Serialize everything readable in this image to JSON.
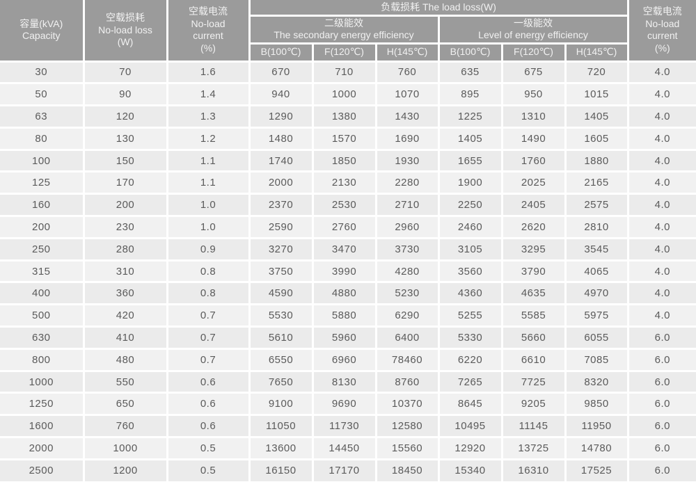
{
  "table": {
    "header": {
      "capacity": [
        "容量(kVA)",
        "Capacity"
      ],
      "no_load_loss": [
        "空载损耗",
        "No-load loss",
        "(W)"
      ],
      "no_load_current_left": [
        "空载电流",
        "No-load",
        "current",
        "(%)"
      ],
      "load_loss_group": "负载损耗 The load loss(W)",
      "secondary_efficiency": [
        "二级能效",
        "The secondary energy efficiency"
      ],
      "first_level_efficiency": [
        "一级能效",
        "Level of energy efficiency"
      ],
      "temp_columns": [
        "B(100℃)",
        "F(120℃)",
        "H(145℃)",
        "B(100℃)",
        "F(120℃)",
        "H(145℃)"
      ],
      "no_load_current_right": [
        "空载电流",
        "No-load",
        "current",
        "(%)"
      ]
    },
    "rows": [
      [
        "30",
        "70",
        "1.6",
        "670",
        "710",
        "760",
        "635",
        "675",
        "720",
        "4.0"
      ],
      [
        "50",
        "90",
        "1.4",
        "940",
        "1000",
        "1070",
        "895",
        "950",
        "1015",
        "4.0"
      ],
      [
        "63",
        "120",
        "1.3",
        "1290",
        "1380",
        "1430",
        "1225",
        "1310",
        "1405",
        "4.0"
      ],
      [
        "80",
        "130",
        "1.2",
        "1480",
        "1570",
        "1690",
        "1405",
        "1490",
        "1605",
        "4.0"
      ],
      [
        "100",
        "150",
        "1.1",
        "1740",
        "1850",
        "1930",
        "1655",
        "1760",
        "1880",
        "4.0"
      ],
      [
        "125",
        "170",
        "1.1",
        "2000",
        "2130",
        "2280",
        "1900",
        "2025",
        "2165",
        "4.0"
      ],
      [
        "160",
        "200",
        "1.0",
        "2370",
        "2530",
        "2710",
        "2250",
        "2405",
        "2575",
        "4.0"
      ],
      [
        "200",
        "230",
        "1.0",
        "2590",
        "2760",
        "2960",
        "2460",
        "2620",
        "2810",
        "4.0"
      ],
      [
        "250",
        "280",
        "0.9",
        "3270",
        "3470",
        "3730",
        "3105",
        "3295",
        "3545",
        "4.0"
      ],
      [
        "315",
        "310",
        "0.8",
        "3750",
        "3990",
        "4280",
        "3560",
        "3790",
        "4065",
        "4.0"
      ],
      [
        "400",
        "360",
        "0.8",
        "4590",
        "4880",
        "5230",
        "4360",
        "4635",
        "4970",
        "4.0"
      ],
      [
        "500",
        "420",
        "0.7",
        "5530",
        "5880",
        "6290",
        "5255",
        "5585",
        "5975",
        "4.0"
      ],
      [
        "630",
        "410",
        "0.7",
        "5610",
        "5960",
        "6400",
        "5330",
        "5660",
        "6055",
        "6.0"
      ],
      [
        "800",
        "480",
        "0.7",
        "6550",
        "6960",
        "78460",
        "6220",
        "6610",
        "7085",
        "6.0"
      ],
      [
        "1000",
        "550",
        "0.6",
        "7650",
        "8130",
        "8760",
        "7265",
        "7725",
        "8320",
        "6.0"
      ],
      [
        "1250",
        "650",
        "0.6",
        "9100",
        "9690",
        "10370",
        "8645",
        "9205",
        "9850",
        "6.0"
      ],
      [
        "1600",
        "760",
        "0.6",
        "11050",
        "11730",
        "12580",
        "10495",
        "11145",
        "11950",
        "6.0"
      ],
      [
        "2000",
        "1000",
        "0.5",
        "13600",
        "14450",
        "15560",
        "12920",
        "13725",
        "14780",
        "6.0"
      ],
      [
        "2500",
        "1200",
        "0.5",
        "16150",
        "17170",
        "18450",
        "15340",
        "16310",
        "17525",
        "6.0"
      ]
    ]
  },
  "colors": {
    "header_bg": "#9b9b9b",
    "header_text": "#f1f1f1",
    "row_bg": "#ebebeb",
    "row_bg_alt": "#f1f1f1",
    "data_text": "#5a5a5a",
    "grid_line": "#ffffff"
  }
}
